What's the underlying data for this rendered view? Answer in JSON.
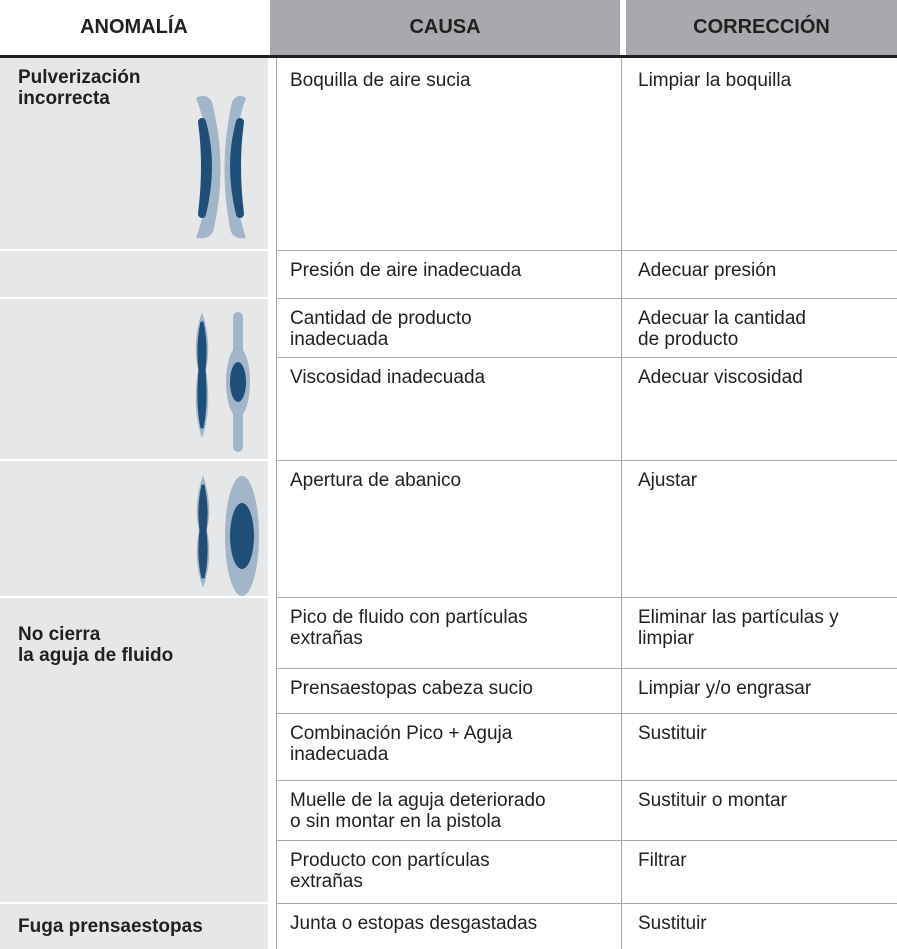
{
  "table": {
    "header": [
      "ANOMALÍA",
      "CAUSA",
      "CORRECCIÓN"
    ],
    "anomalies": [
      "Pulverización\nincorrecta",
      "No cierra\nla aguja de fluido",
      "Fuga prensaestopas"
    ],
    "rows": [
      [
        "Boquilla de aire sucia",
        "Limpiar la boquilla"
      ],
      [
        "Presión de aire inadecuada",
        "Adecuar presión"
      ],
      [
        "Cantidad de producto\ninadecuada",
        "Adecuar la cantidad\nde producto"
      ],
      [
        "Viscosidad inadecuada",
        "Adecuar viscosidad"
      ],
      [
        "Apertura de abanico",
        "Ajustar"
      ],
      [
        "Pico de fluido con partículas\nextrañas",
        "Eliminar las partículas y\nlimpiar"
      ],
      [
        "Prensaestopas cabeza sucio",
        "Limpiar y/o engrasar"
      ],
      [
        "Combinación Pico + Aguja\ninadecuada",
        "Sustituir"
      ],
      [
        "Muelle de la aguja deteriorado\no sin montar en la pistola",
        "Sustituir o montar"
      ],
      [
        "Producto con partículas\nextrañas",
        "Filtrar"
      ],
      [
        "Junta o estopas desgastadas",
        "Sustituir"
      ]
    ]
  }
}
